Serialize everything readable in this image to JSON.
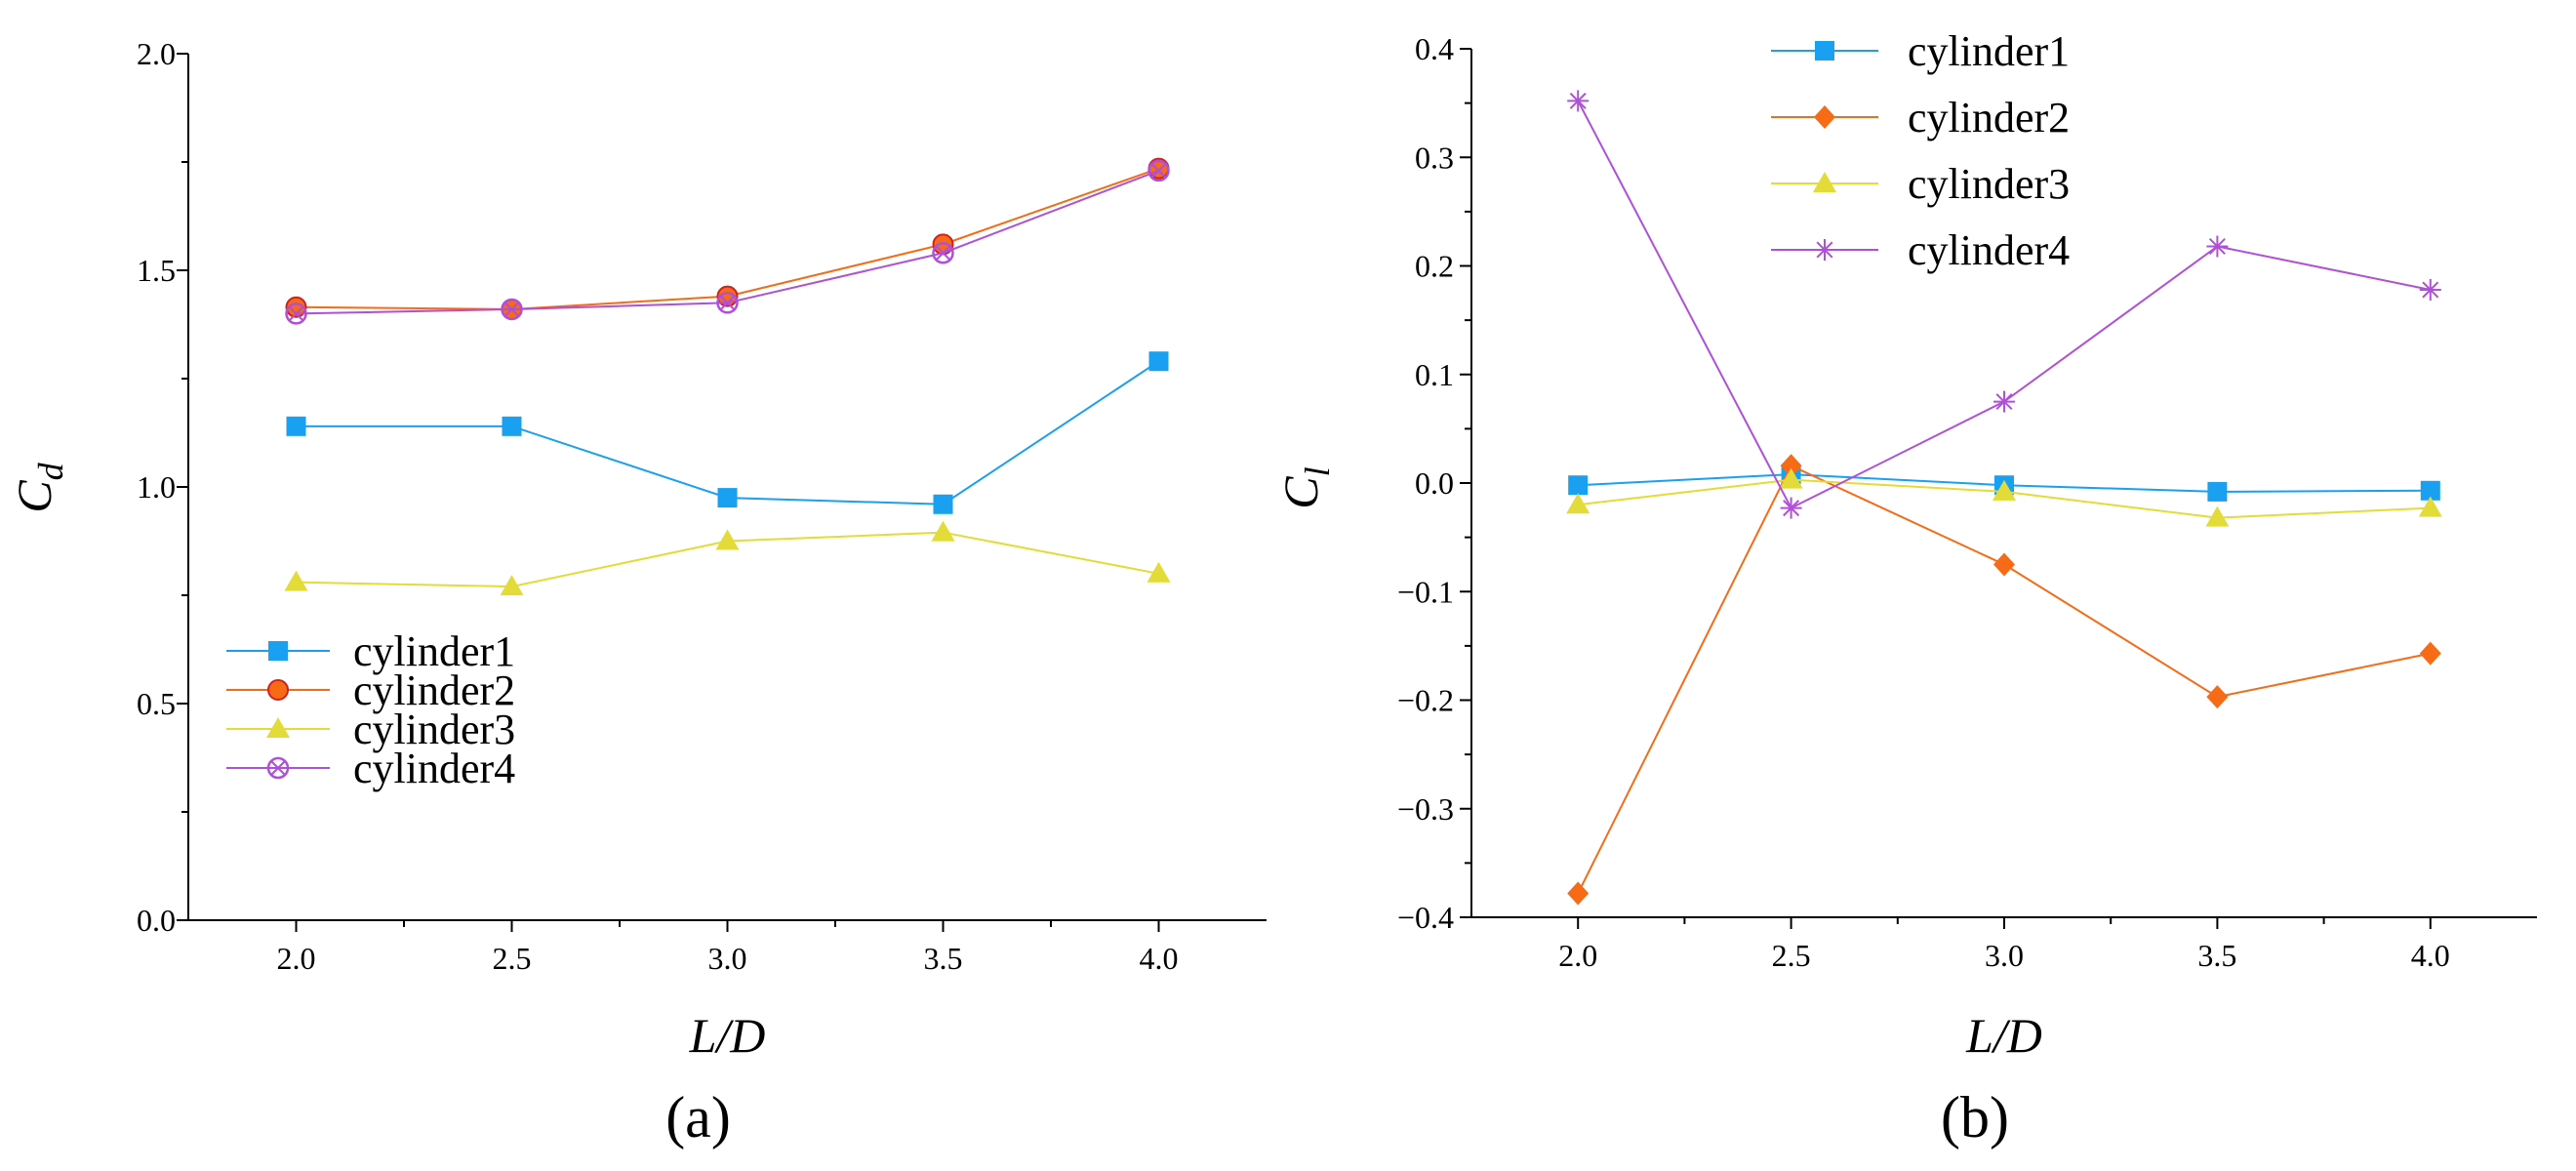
{
  "colors": {
    "cylinder1": "#1aa0f0",
    "cylinder2": "#f76a16",
    "cylinder3": "#e3dc38",
    "cylinder4": "#b04fd8",
    "axis": "#000000"
  },
  "chart_data": [
    {
      "type": "line",
      "panel_label": "(a)",
      "xlabel": "L/D",
      "ylabel_main": "C",
      "ylabel_sub": "d",
      "xlim": [
        1.75,
        4.25
      ],
      "ylim": [
        0.0,
        2.0
      ],
      "xticks": [
        2.0,
        2.5,
        3.0,
        3.5,
        4.0
      ],
      "xtick_labels": [
        "2.0",
        "2.5",
        "3.0",
        "3.5",
        "4.0"
      ],
      "yticks": [
        0.0,
        0.5,
        1.0,
        1.5,
        2.0
      ],
      "ytick_labels": [
        "0.0",
        "0.5",
        "1.0",
        "1.5",
        "2.0"
      ],
      "legend_position": "bottom-left",
      "x": [
        2.0,
        2.5,
        3.0,
        3.5,
        4.0
      ],
      "series": [
        {
          "key": "cylinder1",
          "name": "cylinder1",
          "marker": "square",
          "values": [
            1.14,
            1.14,
            0.975,
            0.96,
            1.29
          ]
        },
        {
          "key": "cylinder2",
          "name": "cylinder2",
          "marker": "circle-filled",
          "values": [
            1.415,
            1.41,
            1.44,
            1.56,
            1.735
          ]
        },
        {
          "key": "cylinder3",
          "name": "cylinder3",
          "marker": "triangle",
          "values": [
            0.78,
            0.77,
            0.875,
            0.895,
            0.8
          ]
        },
        {
          "key": "cylinder4",
          "name": "cylinder4",
          "marker": "circle-open-cross",
          "values": [
            1.4,
            1.41,
            1.425,
            1.54,
            1.73
          ]
        }
      ]
    },
    {
      "type": "line",
      "panel_label": "(b)",
      "xlabel": "L/D",
      "ylabel_main": "C",
      "ylabel_sub": "l",
      "xlim": [
        1.75,
        4.25
      ],
      "ylim": [
        -0.4,
        0.4
      ],
      "xticks": [
        2.0,
        2.5,
        3.0,
        3.5,
        4.0
      ],
      "xtick_labels": [
        "2.0",
        "2.5",
        "3.0",
        "3.5",
        "4.0"
      ],
      "yticks": [
        -0.4,
        -0.3,
        -0.2,
        -0.1,
        0.0,
        0.1,
        0.2,
        0.3,
        0.4
      ],
      "ytick_labels": [
        "−0.4",
        "−0.3",
        "−0.2",
        "−0.1",
        "0.0",
        "0.1",
        "0.2",
        "0.3",
        "0.4"
      ],
      "legend_position": "top-left",
      "x": [
        2.0,
        2.5,
        3.0,
        3.5,
        4.0
      ],
      "series": [
        {
          "key": "cylinder1",
          "name": "cylinder1",
          "marker": "square",
          "values": [
            -0.002,
            0.008,
            -0.002,
            -0.008,
            -0.007
          ]
        },
        {
          "key": "cylinder2",
          "name": "cylinder2",
          "marker": "diamond",
          "values": [
            -0.378,
            0.016,
            -0.075,
            -0.197,
            -0.157
          ]
        },
        {
          "key": "cylinder3",
          "name": "cylinder3",
          "marker": "triangle",
          "values": [
            -0.02,
            0.003,
            -0.008,
            -0.032,
            -0.023
          ]
        },
        {
          "key": "cylinder4",
          "name": "cylinder4",
          "marker": "star",
          "values": [
            0.352,
            -0.023,
            0.075,
            0.218,
            0.178
          ]
        }
      ]
    }
  ]
}
